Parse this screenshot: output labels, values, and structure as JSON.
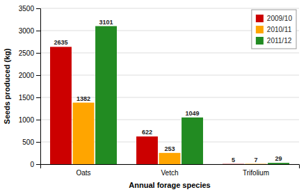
{
  "chart_data": {
    "type": "bar",
    "categories": [
      "Oats",
      "Vetch",
      "Trifolium"
    ],
    "series": [
      {
        "name": "2009/10",
        "color": "#CC0000",
        "values": [
          2635,
          622,
          5
        ]
      },
      {
        "name": "2010/11",
        "color": "#FFA500",
        "values": [
          1382,
          253,
          7
        ]
      },
      {
        "name": "2011/12",
        "color": "#228B22",
        "values": [
          3101,
          1049,
          29
        ]
      }
    ],
    "xlabel": "Annual forage species",
    "ylabel": "Seeds produced (kg)",
    "ylim": [
      0,
      3500
    ],
    "yticks": [
      0,
      500,
      1000,
      1500,
      2000,
      2500,
      3000,
      3500
    ],
    "grid": true,
    "legend": "upper right",
    "data_labels": true
  }
}
